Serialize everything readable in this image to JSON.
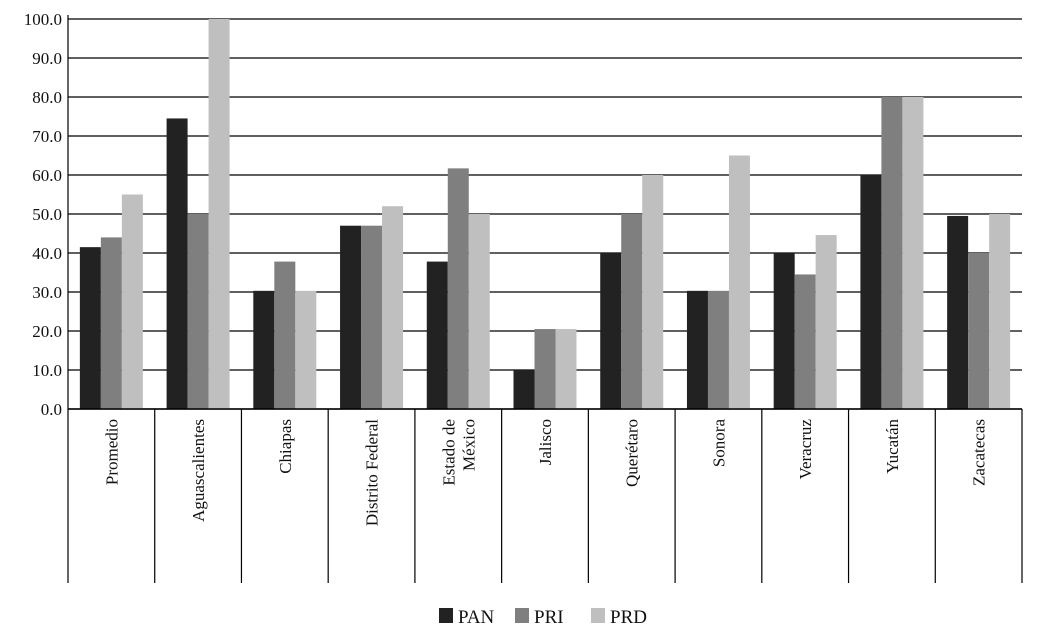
{
  "chart_data": {
    "type": "bar",
    "title": "",
    "xlabel": "",
    "ylabel": "",
    "ylim": [
      0,
      100
    ],
    "yticks": [
      "0.0",
      "10.0",
      "20.0",
      "30.0",
      "40.0",
      "50.0",
      "60.0",
      "70.0",
      "80.0",
      "90.0",
      "100.0"
    ],
    "grid": "horizontal",
    "legend_position": "bottom",
    "categories": [
      [
        "Promedio"
      ],
      [
        "Aguascalientes"
      ],
      [
        "Chiapas"
      ],
      [
        "Distrito Federal"
      ],
      [
        "Estado de",
        "México"
      ],
      [
        "Jalisco"
      ],
      [
        "Querétaro"
      ],
      [
        "Sonora"
      ],
      [
        "Veracruz"
      ],
      [
        "Yucatán"
      ],
      [
        "Zacatecas"
      ]
    ],
    "series": [
      {
        "name": "PAN",
        "color": "#222222",
        "values": [
          41.5,
          74.5,
          30.3,
          47.0,
          37.8,
          10.0,
          40.0,
          30.3,
          40.0,
          60.0,
          49.5
        ]
      },
      {
        "name": "PRI",
        "color": "#7f7f7f",
        "values": [
          44.0,
          50.0,
          37.8,
          47.0,
          61.7,
          20.5,
          50.0,
          30.3,
          34.5,
          80.0,
          40.0
        ]
      },
      {
        "name": "PRD",
        "color": "#bfbfbf",
        "values": [
          55.0,
          100.0,
          30.3,
          52.0,
          50.0,
          20.5,
          60.0,
          65.0,
          44.6,
          80.0,
          50.0
        ]
      }
    ]
  }
}
